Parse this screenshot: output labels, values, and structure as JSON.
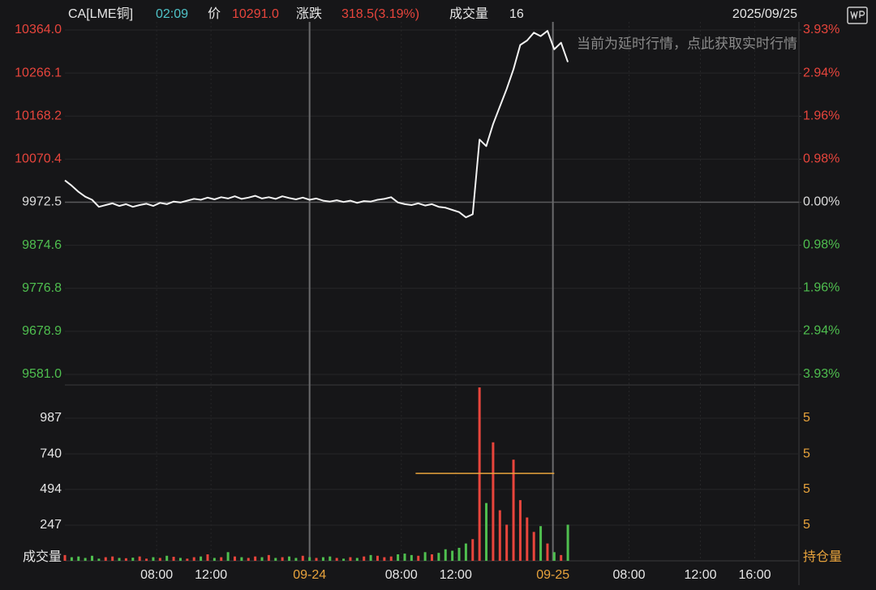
{
  "header": {
    "symbol": "CA[LME铜]",
    "time": "02:09",
    "price_label": "价",
    "price": "10291.0",
    "change_label": "涨跌",
    "change": "318.5(3.19%)",
    "volume_label": "成交量",
    "volume": "16",
    "date": "2025/09/25"
  },
  "notice": "当前为延时行情，点此获取实时行情",
  "chart_data": [
    {
      "type": "line",
      "color": "#f2f2f2",
      "x": [
        0,
        0.5,
        1,
        1.5,
        2,
        2.5,
        3,
        3.5,
        4,
        4.5,
        5,
        5.5,
        6,
        6.5,
        7,
        7.5,
        8,
        8.5,
        9,
        9.5,
        10,
        10.5,
        11,
        11.5,
        12,
        12.5,
        13,
        13.5,
        14,
        14.5,
        15,
        15.5,
        16,
        16.5,
        17,
        17.5,
        18,
        18.5,
        19,
        19.5,
        20,
        20.5,
        21,
        21.5,
        22,
        22.5,
        23,
        23.5,
        24,
        24.5,
        25,
        25.5,
        26,
        26.5,
        27,
        27.5,
        28,
        28.5,
        29,
        29.5,
        30,
        30.5,
        31,
        31.5,
        32,
        32.5,
        33,
        33.5,
        34,
        34.5,
        35,
        35.5,
        36,
        36.5,
        37
      ],
      "values": [
        10022,
        10010,
        9996,
        9985,
        9978,
        9962,
        9966,
        9970,
        9964,
        9968,
        9962,
        9966,
        9969,
        9964,
        9971,
        9968,
        9974,
        9972,
        9976,
        9980,
        9978,
        9983,
        9979,
        9984,
        9981,
        9986,
        9980,
        9983,
        9987,
        9981,
        9984,
        9980,
        9986,
        9982,
        9979,
        9983,
        9978,
        9981,
        9976,
        9974,
        9977,
        9973,
        9976,
        9971,
        9975,
        9974,
        9978,
        9980,
        9984,
        9972,
        9968,
        9966,
        9970,
        9965,
        9968,
        9962,
        9960,
        9955,
        9950,
        9938,
        9945,
        10115,
        10100,
        10150,
        10190,
        10230,
        10275,
        10330,
        10340,
        10358,
        10350,
        10362,
        10320,
        10335,
        10291
      ],
      "xlim": [
        0,
        54
      ],
      "ylim": [
        9581.0,
        10364.0
      ],
      "yticks": [
        {
          "value": 10364.0,
          "label": "10364.0"
        },
        10266.1,
        10168.2,
        10070.4,
        9972.5,
        9874.6,
        9776.8,
        9678.9,
        {
          "value": 9581.0,
          "label": "9581.0"
        }
      ],
      "y2lim": [
        -3.93,
        3.93
      ],
      "y2ticks": [
        {
          "value": 3.93,
          "label": "3.93%"
        },
        {
          "value": 2.94,
          "label": "2.94%"
        },
        {
          "value": 1.96,
          "label": "1.96%"
        },
        {
          "value": 0.98,
          "label": "0.98%"
        },
        {
          "value": 0,
          "label": "0.00%"
        },
        {
          "value": -0.98,
          "label": "0.98%"
        },
        {
          "value": -1.96,
          "label": "1.96%"
        },
        {
          "value": -2.94,
          "label": "2.94%"
        },
        {
          "value": -3.93,
          "label": "3.93%"
        }
      ],
      "up_color": "#e8453c",
      "down_color": "#4fbf4f",
      "flat_color": "#dddddd"
    },
    {
      "type": "bar",
      "ylabel": "成交量",
      "y2label": "持仓量",
      "x": [
        0,
        0.5,
        1,
        1.5,
        2,
        2.5,
        3,
        3.5,
        4,
        4.5,
        5,
        5.5,
        6,
        6.5,
        7,
        7.5,
        8,
        8.5,
        9,
        9.5,
        10,
        10.5,
        11,
        11.5,
        12,
        12.5,
        13,
        13.5,
        14,
        14.5,
        15,
        15.5,
        16,
        16.5,
        17,
        17.5,
        18,
        18.5,
        19,
        19.5,
        20,
        20.5,
        21,
        21.5,
        22,
        22.5,
        23,
        23.5,
        24,
        24.5,
        25,
        25.5,
        26,
        26.5,
        27,
        27.5,
        28,
        28.5,
        29,
        29.5,
        30,
        30.5,
        31,
        31.5,
        32,
        32.5,
        33,
        33.5,
        34,
        34.5,
        35,
        35.5,
        36,
        36.5,
        37
      ],
      "values": [
        40,
        25,
        30,
        20,
        35,
        15,
        25,
        30,
        20,
        18,
        22,
        30,
        15,
        25,
        20,
        35,
        28,
        20,
        15,
        25,
        30,
        45,
        20,
        25,
        60,
        30,
        25,
        20,
        30,
        25,
        40,
        20,
        25,
        30,
        20,
        35,
        25,
        20,
        25,
        30,
        20,
        15,
        25,
        20,
        30,
        40,
        35,
        25,
        30,
        45,
        50,
        40,
        35,
        60,
        45,
        55,
        80,
        70,
        90,
        120,
        150,
        1200,
        400,
        820,
        350,
        250,
        700,
        420,
        300,
        200,
        240,
        120,
        60,
        40,
        250
      ],
      "up_color": "#e8453c",
      "down_color": "#4fbf4f",
      "xlim": [
        0,
        54
      ],
      "ylim": [
        0,
        1217
      ],
      "yticks": [
        987,
        740,
        494,
        247
      ],
      "y2_tick_labels": [
        "5",
        "5",
        "5",
        "5"
      ],
      "reference_line": {
        "value": 605,
        "x": [
          25.8,
          36
        ],
        "color": "#e8a33c"
      },
      "xticks": [
        {
          "value": 6.75,
          "label": "08:00"
        },
        {
          "value": 10.75,
          "label": "12:00"
        },
        {
          "value": 18,
          "label": "09-24"
        },
        {
          "value": 24.75,
          "label": "08:00"
        },
        {
          "value": 28.75,
          "label": "12:00"
        },
        {
          "value": 35.9,
          "label": "09-25"
        },
        {
          "value": 41.5,
          "label": "08:00"
        },
        {
          "value": 46.75,
          "label": "12:00"
        },
        {
          "value": 50.75,
          "label": "16:00"
        }
      ],
      "day_color": "#e8a33c"
    }
  ]
}
